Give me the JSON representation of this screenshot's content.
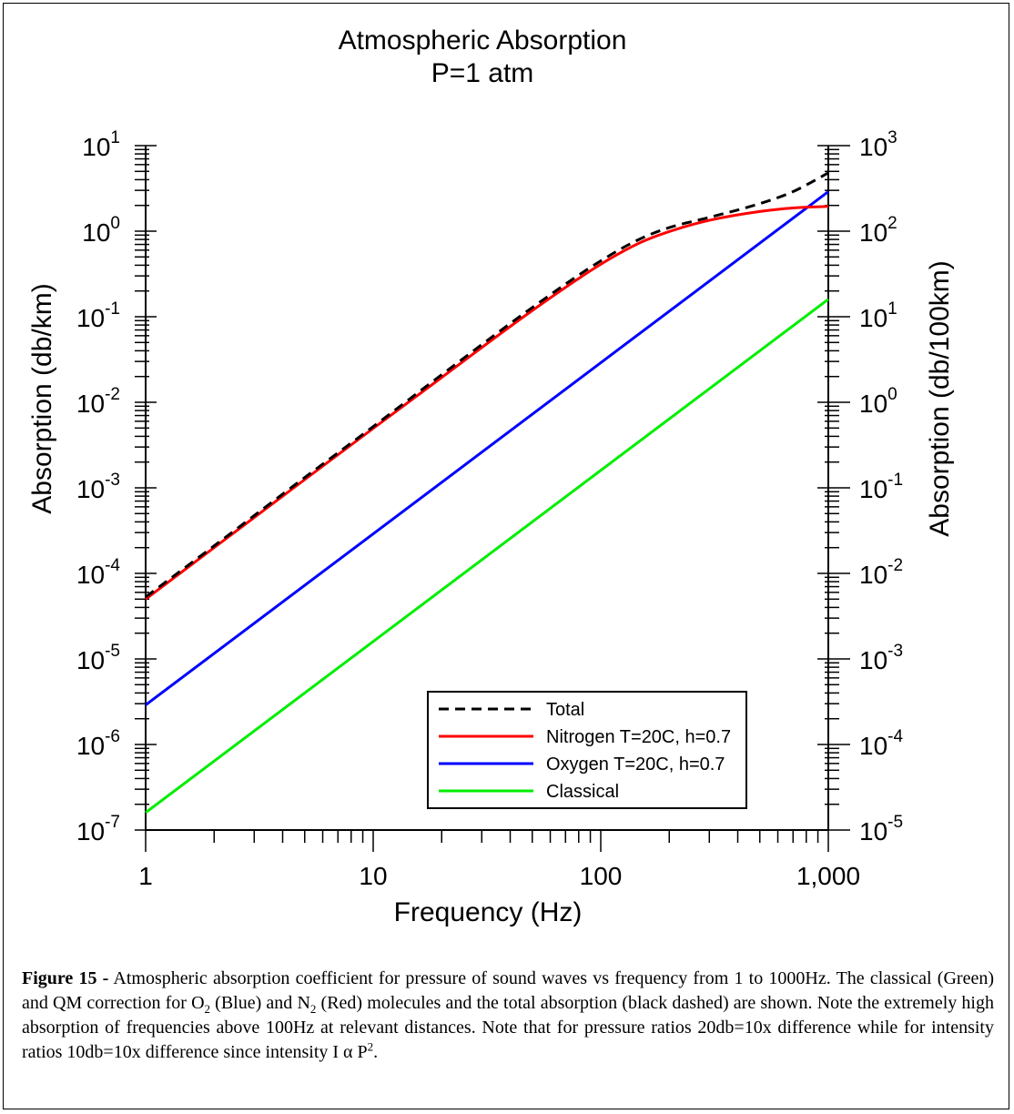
{
  "chart_data": {
    "type": "line",
    "title": "Atmospheric Absorption",
    "subtitle": "P=1 atm",
    "xlabel": "Frequency (Hz)",
    "ylabel": "Absorption (db/km)",
    "y2label": "Absorption (db/100km)",
    "xscale": "log",
    "yscale": "log",
    "xlim": [
      1,
      1000
    ],
    "ylim": [
      1e-07,
      10
    ],
    "y2lim": [
      1e-05,
      1000
    ],
    "x_tick_labels": [
      "1",
      "10",
      "100",
      "1,000"
    ],
    "y_tick_exponents": [
      "-7",
      "-6",
      "-5",
      "-4",
      "-3",
      "-2",
      "-1",
      "0",
      "1"
    ],
    "y2_tick_exponents": [
      "-5",
      "-4",
      "-3",
      "-2",
      "-1",
      "0",
      "1",
      "2",
      "3"
    ],
    "tick_base": "10",
    "legend_position": "bottom-right",
    "series": [
      {
        "name": "Total",
        "color": "#000000",
        "style": "dashed",
        "x": [
          1,
          2,
          5,
          10,
          20,
          50,
          100,
          150,
          200,
          300,
          500,
          700,
          1000
        ],
        "y": [
          5.3e-05,
          0.00021,
          0.00132,
          0.0052,
          0.021,
          0.128,
          0.45,
          0.82,
          1.1,
          1.45,
          2.1,
          2.9,
          4.8
        ]
      },
      {
        "name": "Nitrogen T=20C, h=0.7",
        "color": "#ff0000",
        "style": "solid",
        "x": [
          1,
          2,
          5,
          10,
          20,
          50,
          100,
          150,
          200,
          300,
          500,
          700,
          1000
        ],
        "y": [
          5e-05,
          0.0002,
          0.00125,
          0.00495,
          0.0195,
          0.118,
          0.41,
          0.74,
          0.99,
          1.34,
          1.7,
          1.87,
          1.95
        ]
      },
      {
        "name": "Oxygen T=20C, h=0.7",
        "color": "#0000ff",
        "style": "solid",
        "x": [
          1,
          1000
        ],
        "y": [
          2.9e-06,
          2.9
        ]
      },
      {
        "name": "Classical",
        "color": "#00ee00",
        "style": "solid",
        "x": [
          1,
          1000
        ],
        "y": [
          1.6e-07,
          0.16
        ]
      }
    ]
  },
  "caption": {
    "label": "Figure 15 -",
    "line1": " Atmospheric absorption coefficient for pressure of sound waves vs frequency from 1 to 1000Hz.  The classical (Green) and QM correction for ",
    "o2_base": "O",
    "o2_sub": "2",
    "o2_after": " (Blue) and ",
    "n2_base": "N",
    "n2_sub": "2",
    "n2_after": " (Red) molecules and the total absorption (black dashed) are shown. Note the extremely high absorption of frequencies above 100Hz at relevant distances. Note that for pressure ratios 20db=10x difference while for intensity ratios 10db=10x difference since intensity I α ",
    "p_base": "P",
    "p_sup": "2",
    "p_after": "."
  }
}
